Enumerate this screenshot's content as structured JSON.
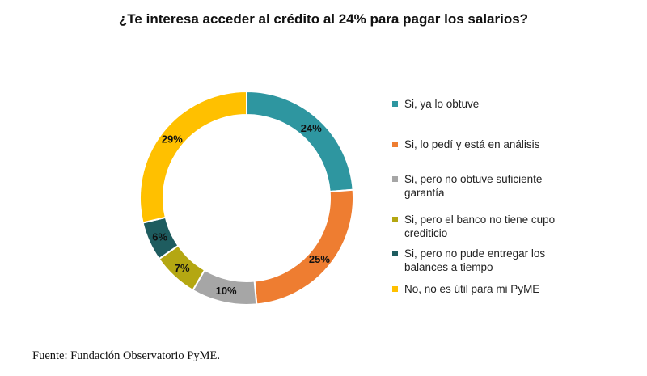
{
  "chart_data": {
    "type": "pie",
    "title": "¿Te interesa acceder al crédito al 24% para pagar los salarios?",
    "slices": [
      {
        "label": "Si, ya lo obtuve",
        "value": 24,
        "display": "24%",
        "color": "#2e96a0"
      },
      {
        "label": "Si, lo pedí y está en análisis",
        "value": 25,
        "display": "25%",
        "color": "#ee7d31"
      },
      {
        "label": "Si, pero no obtuve suficiente garantía",
        "value": 10,
        "display": "10%",
        "color": "#a6a6a6"
      },
      {
        "label": "Si, pero el banco no tiene cupo crediticio",
        "value": 7,
        "display": "7%",
        "color": "#b4a712"
      },
      {
        "label": "Si, pero no pude entregar los balances a tiempo",
        "value": 6,
        "display": "6%",
        "color": "#1e5c5f"
      },
      {
        "label": "No, no es útil para mi PyME",
        "value": 29,
        "display": "29%",
        "color": "#ffc000"
      }
    ],
    "legend_position": "right"
  },
  "source": "Fuente: Fundación Observatorio PyME."
}
